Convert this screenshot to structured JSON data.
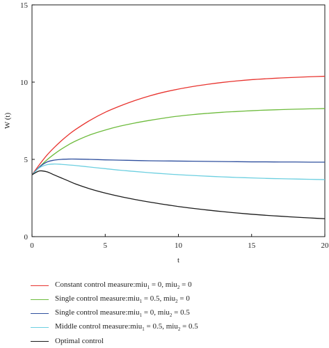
{
  "chart_data": {
    "type": "line",
    "title": "",
    "xlabel": "t",
    "ylabel": "W (t)",
    "xlim": [
      0,
      20
    ],
    "ylim": [
      0,
      15
    ],
    "xticks": [
      "0",
      "5",
      "10",
      "15",
      "20"
    ],
    "yticks": [
      "0",
      "5",
      "10",
      "15"
    ],
    "grid": false,
    "legend_position": "bottom",
    "x": [
      0,
      0.5,
      1,
      1.5,
      2,
      2.5,
      3,
      4,
      5,
      6,
      7,
      8,
      9,
      10,
      11,
      12,
      13,
      14,
      15,
      16,
      17,
      18,
      19,
      20
    ],
    "series": [
      {
        "name": "Constant control measure:miu1 = 0, miu2 = 0",
        "name_parts": [
          [
            "Constant control measure:miu",
            ""
          ],
          [
            "1",
            "sub"
          ],
          [
            " = 0, miu",
            ""
          ],
          [
            "2",
            "sub"
          ],
          [
            " = 0",
            ""
          ]
        ],
        "color": "#e8332e",
        "values": [
          4.0,
          4.65,
          5.25,
          5.75,
          6.2,
          6.6,
          6.95,
          7.55,
          8.05,
          8.45,
          8.8,
          9.1,
          9.35,
          9.55,
          9.72,
          9.86,
          9.98,
          10.08,
          10.16,
          10.22,
          10.27,
          10.31,
          10.35,
          10.38
        ]
      },
      {
        "name": "Single control measure:miu1 = 0.5, miu2 = 0",
        "name_parts": [
          [
            "Single control measure:miu",
            ""
          ],
          [
            "1",
            "sub"
          ],
          [
            " = 0.5, miu",
            ""
          ],
          [
            "2",
            "sub"
          ],
          [
            " = 0",
            ""
          ]
        ],
        "color": "#6dbb3c",
        "values": [
          4.0,
          4.5,
          4.95,
          5.33,
          5.66,
          5.95,
          6.2,
          6.6,
          6.9,
          7.15,
          7.35,
          7.52,
          7.67,
          7.8,
          7.9,
          7.98,
          8.05,
          8.1,
          8.15,
          8.19,
          8.22,
          8.25,
          8.27,
          8.29
        ]
      },
      {
        "name": "Single control measure:miu1 = 0, miu2 = 0.5",
        "name_parts": [
          [
            "Single control measure:miu",
            ""
          ],
          [
            "1",
            "sub"
          ],
          [
            " = 0, miu",
            ""
          ],
          [
            "2",
            "sub"
          ],
          [
            " = 0.5",
            ""
          ]
        ],
        "color": "#2e4f9e",
        "values": [
          4.0,
          4.5,
          4.82,
          4.95,
          5.0,
          5.02,
          5.02,
          5.0,
          4.97,
          4.95,
          4.93,
          4.91,
          4.9,
          4.89,
          4.88,
          4.87,
          4.86,
          4.85,
          4.84,
          4.84,
          4.83,
          4.83,
          4.82,
          4.82
        ]
      },
      {
        "name": "Middle control measure:miu1 = 0.5, miu2 = 0.5",
        "name_parts": [
          [
            "Middle control measure:miu",
            ""
          ],
          [
            "1",
            "sub"
          ],
          [
            " = 0.5, miu",
            ""
          ],
          [
            "2",
            "sub"
          ],
          [
            " = 0.5",
            ""
          ]
        ],
        "color": "#6ccfe0",
        "values": [
          4.0,
          4.45,
          4.65,
          4.7,
          4.68,
          4.64,
          4.6,
          4.5,
          4.4,
          4.3,
          4.22,
          4.14,
          4.07,
          4.01,
          3.96,
          3.91,
          3.87,
          3.83,
          3.8,
          3.77,
          3.75,
          3.73,
          3.71,
          3.69
        ]
      },
      {
        "name": "Optimal control",
        "name_parts": [
          [
            "Optimal control",
            ""
          ]
        ],
        "color": "#1a1a1a",
        "values": [
          4.0,
          4.25,
          4.2,
          4.0,
          3.8,
          3.6,
          3.4,
          3.08,
          2.82,
          2.6,
          2.41,
          2.24,
          2.09,
          1.95,
          1.83,
          1.72,
          1.62,
          1.53,
          1.45,
          1.38,
          1.32,
          1.26,
          1.21,
          1.16
        ]
      }
    ]
  }
}
